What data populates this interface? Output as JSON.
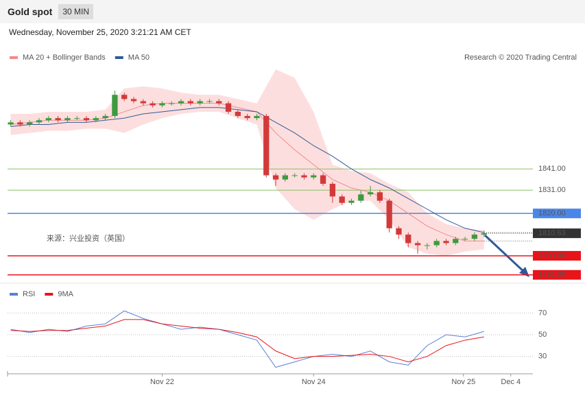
{
  "header": {
    "title": "Gold spot",
    "timeframe": "30 MIN",
    "timestamp": "Wednesday, November 25, 2020 3:21:21 AM CET"
  },
  "chart_data": [
    {
      "type": "candlestick",
      "annotation": "来源：兴业投资（英国）",
      "credit": "Research © 2020 Trading Central",
      "legend_corner": "top-left",
      "up_color": "#3f9a3f",
      "down_color": "#d23a3a",
      "x": [
        2,
        8,
        14,
        20,
        26,
        32,
        38,
        44,
        50,
        56,
        62,
        68,
        74,
        80,
        86,
        92,
        98,
        104,
        110,
        116,
        122,
        128,
        134,
        140,
        146,
        152,
        158,
        164,
        170,
        176,
        182,
        188,
        194,
        200,
        206,
        212,
        218,
        224,
        230,
        236,
        242,
        248,
        254,
        260,
        266,
        272,
        278,
        284,
        290,
        296,
        302
      ],
      "open": [
        1862,
        1863,
        1862,
        1863,
        1864,
        1865,
        1864,
        1865,
        1865,
        1864,
        1865,
        1866,
        1876,
        1874,
        1873,
        1872,
        1871,
        1872,
        1872,
        1873,
        1872,
        1873,
        1873,
        1872,
        1868,
        1866,
        1865,
        1866,
        1838,
        1836,
        1838,
        1838,
        1837,
        1838,
        1834,
        1828,
        1825,
        1826,
        1829,
        1830,
        1826,
        1813,
        1810,
        1806,
        1805,
        1805,
        1807,
        1806,
        1808,
        1808,
        1810
      ],
      "high": [
        1864,
        1864,
        1864,
        1865,
        1866,
        1866,
        1866,
        1866,
        1866,
        1866,
        1867,
        1878,
        1877,
        1875,
        1874,
        1873,
        1873,
        1873,
        1874,
        1874,
        1874,
        1874,
        1874,
        1873,
        1869,
        1867,
        1867,
        1867,
        1839,
        1839,
        1839,
        1839,
        1839,
        1839,
        1835,
        1829,
        1827,
        1831,
        1833,
        1831,
        1827,
        1814,
        1811,
        1807,
        1806,
        1808,
        1808,
        1809,
        1809,
        1811,
        1812
      ],
      "low": [
        1861,
        1861,
        1861,
        1862,
        1863,
        1863,
        1863,
        1864,
        1863,
        1863,
        1864,
        1865,
        1873,
        1872,
        1871,
        1870,
        1870,
        1871,
        1871,
        1871,
        1871,
        1872,
        1871,
        1867,
        1865,
        1864,
        1864,
        1837,
        1833,
        1835,
        1837,
        1836,
        1836,
        1833,
        1825,
        1824,
        1824,
        1825,
        1828,
        1825,
        1811,
        1808,
        1804,
        1801,
        1803,
        1804,
        1805,
        1805,
        1807,
        1807,
        1809
      ],
      "close": [
        1863,
        1862,
        1863,
        1864,
        1865,
        1864,
        1865,
        1865,
        1864,
        1865,
        1866,
        1876,
        1874,
        1873,
        1872,
        1871,
        1872,
        1872,
        1873,
        1872,
        1873,
        1873,
        1872,
        1868,
        1866,
        1865,
        1866,
        1838,
        1836,
        1838,
        1838,
        1837,
        1838,
        1834,
        1828,
        1825,
        1826,
        1829,
        1830,
        1826,
        1813,
        1810,
        1806,
        1805,
        1805,
        1807,
        1806,
        1808,
        1808,
        1810,
        1810.63
      ],
      "series": [
        {
          "name": "MA 20 + Bollinger Bands",
          "color": "#f08a8a",
          "band_color": "#fddede",
          "x": [
            2,
            14,
            26,
            38,
            50,
            62,
            74,
            86,
            98,
            110,
            122,
            134,
            146,
            158,
            170,
            182,
            194,
            206,
            218,
            230,
            242,
            254,
            266,
            278,
            290,
            302
          ],
          "values": [
            1862,
            1863,
            1864,
            1864,
            1864,
            1865,
            1868,
            1871,
            1872,
            1872,
            1872,
            1872,
            1870,
            1868,
            1858,
            1850,
            1843,
            1836,
            1832,
            1830,
            1826,
            1820,
            1814,
            1810,
            1807,
            1807
          ],
          "upper": [
            1867,
            1867,
            1868,
            1868,
            1868,
            1869,
            1879,
            1880,
            1879,
            1877,
            1876,
            1876,
            1874,
            1872,
            1888,
            1884,
            1868,
            1843,
            1840,
            1839,
            1834,
            1830,
            1820,
            1815,
            1813,
            1812
          ],
          "lower": [
            1857,
            1858,
            1859,
            1859,
            1860,
            1860,
            1858,
            1862,
            1865,
            1867,
            1868,
            1868,
            1865,
            1862,
            1832,
            1822,
            1817,
            1822,
            1826,
            1826,
            1817,
            1804,
            1801,
            1800,
            1802,
            1803
          ]
        },
        {
          "name": "MA 50",
          "color": "#2d5b9a",
          "x": [
            2,
            14,
            26,
            38,
            50,
            62,
            74,
            86,
            98,
            110,
            122,
            134,
            146,
            158,
            170,
            182,
            194,
            206,
            218,
            230,
            242,
            254,
            266,
            278,
            290,
            302
          ],
          "values": [
            1861,
            1862,
            1862,
            1863,
            1863,
            1864,
            1865,
            1867,
            1868,
            1869,
            1870,
            1870,
            1869,
            1868,
            1863,
            1858,
            1852,
            1847,
            1841,
            1836,
            1832,
            1827,
            1822,
            1817,
            1813,
            1811
          ]
        }
      ],
      "levels": [
        {
          "value": 1841,
          "label": "1841.00",
          "color": "#8cc063",
          "style": "text"
        },
        {
          "value": 1831,
          "label": "1831.00",
          "color": "#8cc063",
          "style": "text"
        },
        {
          "value": 1820,
          "label": "1820.00",
          "color": "#4a86e8",
          "style": "box"
        },
        {
          "value": 1800,
          "label": "1800.00",
          "color": "#e8141a",
          "style": "box"
        },
        {
          "value": 1791,
          "label": "1791.00",
          "color": "#e8141a",
          "style": "box"
        }
      ],
      "last_price": {
        "value": 1810.63,
        "label": "1810.63",
        "color": "#333333"
      },
      "xlim": [
        0,
        333
      ],
      "ylim": [
        1788,
        1890
      ]
    },
    {
      "type": "line",
      "legend_corner": "top-left",
      "series": [
        {
          "name": "RSI",
          "color": "#5b7fd6",
          "x": [
            2,
            14,
            26,
            38,
            50,
            62,
            74,
            86,
            98,
            110,
            122,
            134,
            146,
            158,
            170,
            182,
            194,
            206,
            218,
            230,
            242,
            254,
            266,
            278,
            290,
            302
          ],
          "values": [
            55,
            52,
            55,
            53,
            58,
            60,
            72,
            65,
            60,
            55,
            57,
            55,
            50,
            45,
            20,
            25,
            30,
            32,
            30,
            35,
            25,
            22,
            40,
            50,
            48,
            53
          ]
        },
        {
          "name": "9MA",
          "color": "#e8141a",
          "x": [
            2,
            14,
            26,
            38,
            50,
            62,
            74,
            86,
            98,
            110,
            122,
            134,
            146,
            158,
            170,
            182,
            194,
            206,
            218,
            230,
            242,
            254,
            266,
            278,
            290,
            302
          ],
          "values": [
            54,
            53,
            54,
            54,
            56,
            58,
            64,
            64,
            60,
            58,
            56,
            55,
            52,
            48,
            35,
            28,
            30,
            30,
            31,
            32,
            30,
            25,
            30,
            40,
            45,
            48
          ]
        }
      ],
      "xlim": [
        0,
        333
      ],
      "ylim": [
        14,
        93
      ],
      "yticks": [
        30,
        50,
        70
      ],
      "xticks": [
        {
          "value": 98,
          "label": "Nov 22"
        },
        {
          "value": 194,
          "label": "Nov 24"
        },
        {
          "value": 289,
          "label": "Nov 25"
        },
        {
          "value": 319,
          "label": "Dec 4"
        }
      ]
    }
  ]
}
